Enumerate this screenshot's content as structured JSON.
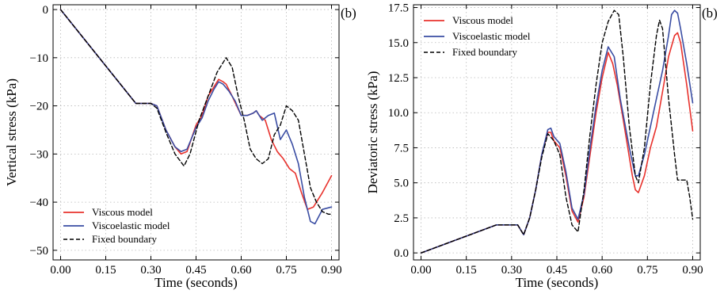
{
  "chart_data": [
    {
      "type": "line",
      "panel_label": "(b)",
      "xlabel": "Time (seconds)",
      "ylabel": "Vertical stress (kPa)",
      "xlim": [
        -0.025,
        0.925
      ],
      "ylim": [
        -52,
        1
      ],
      "x_ticks": [
        0.0,
        0.15,
        0.3,
        0.45,
        0.6,
        0.75,
        0.9
      ],
      "x_tick_labels": [
        "0.00",
        "0.15",
        "0.30",
        "0.45",
        "0.60",
        "0.75",
        "0.90"
      ],
      "y_ticks": [
        0,
        -10,
        -20,
        -30,
        -40,
        -50
      ],
      "y_tick_labels": [
        "0",
        "−10",
        "−20",
        "−30",
        "−40",
        "−50"
      ],
      "grid": true,
      "legend_position": "bottom-left",
      "series": [
        {
          "name": "Viscous model",
          "color": "#e8322d",
          "dash": "solid",
          "points": [
            [
              0,
              0
            ],
            [
              0.25,
              -19.5
            ],
            [
              0.3,
              -19.5
            ],
            [
              0.32,
              -20
            ],
            [
              0.35,
              -25
            ],
            [
              0.38,
              -28.5
            ],
            [
              0.4,
              -30
            ],
            [
              0.42,
              -29.5
            ],
            [
              0.45,
              -24
            ],
            [
              0.47,
              -22
            ],
            [
              0.49,
              -18
            ],
            [
              0.51,
              -16
            ],
            [
              0.525,
              -14.5
            ],
            [
              0.54,
              -15
            ],
            [
              0.55,
              -15.5
            ],
            [
              0.57,
              -18
            ],
            [
              0.6,
              -22
            ],
            [
              0.62,
              -22
            ],
            [
              0.64,
              -21.5
            ],
            [
              0.65,
              -21
            ],
            [
              0.66,
              -22
            ],
            [
              0.68,
              -23
            ],
            [
              0.7,
              -27
            ],
            [
              0.72,
              -29.5
            ],
            [
              0.74,
              -31
            ],
            [
              0.76,
              -33
            ],
            [
              0.78,
              -34
            ],
            [
              0.8,
              -38
            ],
            [
              0.82,
              -41.5
            ],
            [
              0.84,
              -41
            ],
            [
              0.85,
              -40
            ],
            [
              0.87,
              -38
            ],
            [
              0.9,
              -34.5
            ]
          ]
        },
        {
          "name": "Viscoelastic model",
          "color": "#3a4da3",
          "dash": "solid",
          "points": [
            [
              0,
              0
            ],
            [
              0.25,
              -19.5
            ],
            [
              0.3,
              -19.5
            ],
            [
              0.32,
              -20
            ],
            [
              0.35,
              -25
            ],
            [
              0.38,
              -28.5
            ],
            [
              0.4,
              -29.5
            ],
            [
              0.42,
              -29
            ],
            [
              0.45,
              -24.5
            ],
            [
              0.47,
              -22.5
            ],
            [
              0.49,
              -19
            ],
            [
              0.51,
              -16.5
            ],
            [
              0.525,
              -15
            ],
            [
              0.54,
              -15.5
            ],
            [
              0.56,
              -17
            ],
            [
              0.58,
              -19
            ],
            [
              0.6,
              -22
            ],
            [
              0.62,
              -22
            ],
            [
              0.64,
              -21.5
            ],
            [
              0.65,
              -21
            ],
            [
              0.67,
              -23
            ],
            [
              0.69,
              -22
            ],
            [
              0.71,
              -21.5
            ],
            [
              0.73,
              -27
            ],
            [
              0.75,
              -25
            ],
            [
              0.77,
              -28
            ],
            [
              0.79,
              -32
            ],
            [
              0.81,
              -39
            ],
            [
              0.83,
              -44
            ],
            [
              0.845,
              -44.5
            ],
            [
              0.87,
              -41.5
            ],
            [
              0.9,
              -41
            ]
          ]
        },
        {
          "name": "Fixed boundary",
          "color": "#000000",
          "dash": "dashed",
          "points": [
            [
              0,
              0
            ],
            [
              0.25,
              -19.5
            ],
            [
              0.3,
              -19.5
            ],
            [
              0.32,
              -20.5
            ],
            [
              0.35,
              -25.5
            ],
            [
              0.38,
              -30
            ],
            [
              0.41,
              -32.5
            ],
            [
              0.43,
              -30
            ],
            [
              0.46,
              -23
            ],
            [
              0.49,
              -18
            ],
            [
              0.52,
              -13
            ],
            [
              0.55,
              -10
            ],
            [
              0.57,
              -12
            ],
            [
              0.59,
              -18
            ],
            [
              0.61,
              -23
            ],
            [
              0.63,
              -29
            ],
            [
              0.65,
              -31
            ],
            [
              0.67,
              -32
            ],
            [
              0.69,
              -31
            ],
            [
              0.71,
              -26
            ],
            [
              0.73,
              -24
            ],
            [
              0.75,
              -20
            ],
            [
              0.77,
              -21
            ],
            [
              0.79,
              -23
            ],
            [
              0.81,
              -30
            ],
            [
              0.83,
              -37
            ],
            [
              0.85,
              -40
            ],
            [
              0.87,
              -42
            ],
            [
              0.89,
              -42.5
            ],
            [
              0.9,
              -42.5
            ]
          ]
        }
      ]
    },
    {
      "type": "line",
      "panel_label": "(b)",
      "xlabel": "Time (seconds)",
      "ylabel": "Deviatoric stress (kPa)",
      "xlim": [
        -0.025,
        0.925
      ],
      "ylim": [
        -0.5,
        17.7
      ],
      "x_ticks": [
        0.0,
        0.15,
        0.3,
        0.45,
        0.6,
        0.75,
        0.9
      ],
      "x_tick_labels": [
        "0.00",
        "0.15",
        "0.30",
        "0.45",
        "0.60",
        "0.75",
        "0.90"
      ],
      "y_ticks": [
        0,
        2.5,
        5,
        7.5,
        10,
        12.5,
        15,
        17.5
      ],
      "y_tick_labels": [
        "0.0",
        "2.5",
        "5.0",
        "7.5",
        "10.0",
        "12.5",
        "15.0",
        "17.5"
      ],
      "grid": true,
      "legend_position": "top-left",
      "series": [
        {
          "name": "Viscous model",
          "color": "#e8322d",
          "dash": "solid",
          "points": [
            [
              0,
              0
            ],
            [
              0.25,
              2
            ],
            [
              0.3,
              2
            ],
            [
              0.32,
              2
            ],
            [
              0.34,
              1.3
            ],
            [
              0.36,
              2.5
            ],
            [
              0.38,
              4.5
            ],
            [
              0.4,
              7
            ],
            [
              0.42,
              8.6
            ],
            [
              0.43,
              8.6
            ],
            [
              0.44,
              8
            ],
            [
              0.46,
              7.5
            ],
            [
              0.48,
              5.5
            ],
            [
              0.5,
              3
            ],
            [
              0.52,
              2.2
            ],
            [
              0.54,
              4
            ],
            [
              0.56,
              7
            ],
            [
              0.58,
              10
            ],
            [
              0.6,
              12.5
            ],
            [
              0.62,
              14.3
            ],
            [
              0.635,
              13.5
            ],
            [
              0.65,
              12
            ],
            [
              0.67,
              9.5
            ],
            [
              0.7,
              5.5
            ],
            [
              0.71,
              4.5
            ],
            [
              0.72,
              4.3
            ],
            [
              0.74,
              5.5
            ],
            [
              0.76,
              7.5
            ],
            [
              0.78,
              9
            ],
            [
              0.8,
              11.5
            ],
            [
              0.82,
              14
            ],
            [
              0.84,
              15.5
            ],
            [
              0.85,
              15.7
            ],
            [
              0.86,
              15
            ],
            [
              0.88,
              12
            ],
            [
              0.9,
              8.7
            ]
          ]
        },
        {
          "name": "Viscoelastic model",
          "color": "#3a4da3",
          "dash": "solid",
          "points": [
            [
              0,
              0
            ],
            [
              0.25,
              2
            ],
            [
              0.3,
              2
            ],
            [
              0.32,
              2
            ],
            [
              0.34,
              1.3
            ],
            [
              0.36,
              2.5
            ],
            [
              0.38,
              4.5
            ],
            [
              0.4,
              7
            ],
            [
              0.42,
              8.8
            ],
            [
              0.43,
              8.9
            ],
            [
              0.44,
              8.3
            ],
            [
              0.46,
              7.8
            ],
            [
              0.48,
              5.8
            ],
            [
              0.5,
              3.2
            ],
            [
              0.52,
              2.4
            ],
            [
              0.54,
              4.2
            ],
            [
              0.56,
              7.5
            ],
            [
              0.58,
              10.5
            ],
            [
              0.6,
              13
            ],
            [
              0.62,
              14.7
            ],
            [
              0.64,
              14
            ],
            [
              0.66,
              11
            ],
            [
              0.69,
              7.5
            ],
            [
              0.71,
              5.5
            ],
            [
              0.72,
              5.5
            ],
            [
              0.74,
              7
            ],
            [
              0.76,
              9
            ],
            [
              0.78,
              11
            ],
            [
              0.8,
              13
            ],
            [
              0.82,
              15.5
            ],
            [
              0.83,
              17
            ],
            [
              0.84,
              17.3
            ],
            [
              0.85,
              17.1
            ],
            [
              0.86,
              16
            ],
            [
              0.88,
              13.5
            ],
            [
              0.9,
              10.7
            ]
          ]
        },
        {
          "name": "Fixed boundary",
          "color": "#000000",
          "dash": "dashed",
          "points": [
            [
              0,
              0
            ],
            [
              0.25,
              2
            ],
            [
              0.3,
              2
            ],
            [
              0.32,
              2
            ],
            [
              0.34,
              1.3
            ],
            [
              0.36,
              2.5
            ],
            [
              0.38,
              4.5
            ],
            [
              0.4,
              6.8
            ],
            [
              0.42,
              8.5
            ],
            [
              0.44,
              8
            ],
            [
              0.46,
              7
            ],
            [
              0.48,
              4
            ],
            [
              0.5,
              2
            ],
            [
              0.52,
              1.5
            ],
            [
              0.54,
              4.5
            ],
            [
              0.56,
              8.5
            ],
            [
              0.58,
              12
            ],
            [
              0.6,
              15
            ],
            [
              0.62,
              16.5
            ],
            [
              0.64,
              17.3
            ],
            [
              0.655,
              17
            ],
            [
              0.67,
              14
            ],
            [
              0.69,
              9
            ],
            [
              0.71,
              5.5
            ],
            [
              0.72,
              5
            ],
            [
              0.74,
              7.5
            ],
            [
              0.76,
              12
            ],
            [
              0.78,
              15.5
            ],
            [
              0.79,
              16.6
            ],
            [
              0.8,
              16
            ],
            [
              0.82,
              11
            ],
            [
              0.84,
              7
            ],
            [
              0.85,
              5.2
            ],
            [
              0.88,
              5.2
            ],
            [
              0.89,
              4
            ],
            [
              0.9,
              2.4
            ]
          ]
        }
      ]
    }
  ]
}
